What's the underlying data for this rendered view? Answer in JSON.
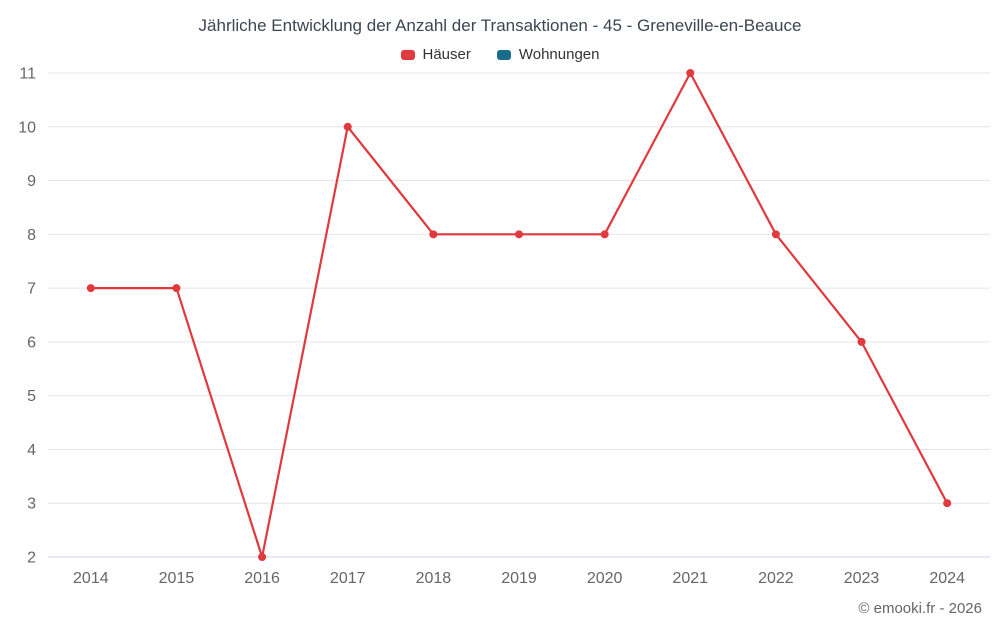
{
  "page": {
    "copyright": "© emooki.fr - 2026"
  },
  "chart_data": {
    "type": "line",
    "title": "Jährliche Entwicklung der Anzahl der Transaktionen - 45 - Greneville-en-Beauce",
    "categories": [
      "2014",
      "2015",
      "2016",
      "2017",
      "2018",
      "2019",
      "2020",
      "2021",
      "2022",
      "2023",
      "2024"
    ],
    "series": [
      {
        "name": "Häuser",
        "color": "#e0393e",
        "values": [
          7,
          7,
          2,
          10,
          8,
          8,
          8,
          11,
          8,
          6,
          3
        ]
      },
      {
        "name": "Wohnungen",
        "color": "#1b6d8e",
        "values": []
      }
    ],
    "ylim": [
      2,
      11
    ],
    "ytick_step": 1,
    "grid": "horizontal",
    "legend_position": "top",
    "xlabel": "",
    "ylabel": ""
  }
}
